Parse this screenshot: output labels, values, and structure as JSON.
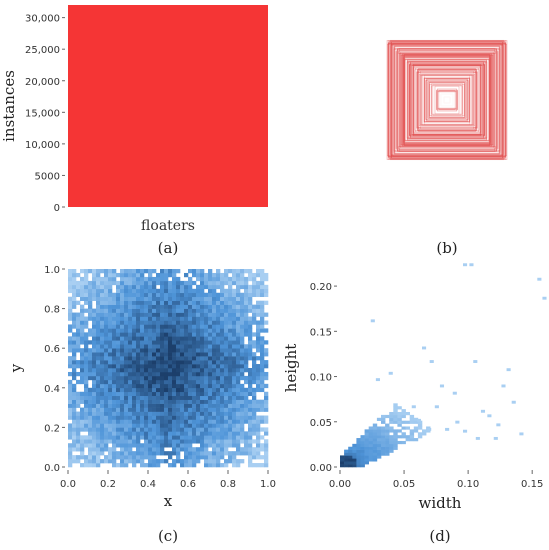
{
  "colors": {
    "bar": "#f53535",
    "box_stroke": "#e04545",
    "heat_light": "#a9cff2",
    "heat_mid": "#4e94d8",
    "heat_dark": "#1c3f6b"
  },
  "panels": {
    "a": "(a)",
    "b": "(b)",
    "c": "(c)",
    "d": "(d)"
  },
  "chart_data": [
    {
      "type": "bar",
      "categories": [
        "floaters"
      ],
      "values": [
        32000
      ],
      "ylabel": "instances",
      "ylim": [
        0,
        32000
      ],
      "yticks": [
        "0",
        "5000",
        "10,000",
        "15,000",
        "20,000",
        "25,000",
        "30,000"
      ],
      "ytick_values": [
        0,
        5000,
        10000,
        15000,
        20000,
        25000,
        30000
      ]
    },
    {
      "type": "other",
      "description_kind": "overlaid bounding boxes",
      "grid": false
    },
    {
      "type": "heatmap",
      "xlabel": "x",
      "ylabel": "y",
      "xlim": [
        0,
        1
      ],
      "ylim": [
        0,
        1
      ],
      "xticks": [
        "0.0",
        "0.2",
        "0.4",
        "0.6",
        "0.8",
        "1.0"
      ],
      "yticks": [
        "0.0",
        "0.2",
        "0.4",
        "0.6",
        "0.8",
        "1.0"
      ],
      "tick_values": [
        0,
        0.2,
        0.4,
        0.6,
        0.8,
        1.0
      ],
      "bins": 50,
      "center": [
        0.5,
        0.5
      ],
      "density_shape": "diamond"
    },
    {
      "type": "heatmap",
      "xlabel": "width",
      "ylabel": "height",
      "xlim": [
        0,
        0.16
      ],
      "ylim": [
        0,
        0.22
      ],
      "xticks": [
        "0.00",
        "0.05",
        "0.10",
        "0.15"
      ],
      "xtick_values": [
        0,
        0.05,
        0.1,
        0.15
      ],
      "yticks": [
        "0.00",
        "0.05",
        "0.10",
        "0.15",
        "0.20"
      ],
      "ytick_values": [
        0,
        0.05,
        0.1,
        0.15,
        0.2
      ],
      "cell_size": 0.0032,
      "outlier_cells": [
        [
          0.024,
          0.16
        ],
        [
          0.038,
          0.102
        ],
        [
          0.064,
          0.13
        ],
        [
          0.07,
          0.115
        ],
        [
          0.078,
          0.088
        ],
        [
          0.088,
          0.08
        ],
        [
          0.096,
          0.222
        ],
        [
          0.101,
          0.222
        ],
        [
          0.104,
          0.115
        ],
        [
          0.11,
          0.06
        ],
        [
          0.115,
          0.055
        ],
        [
          0.122,
          0.045
        ],
        [
          0.126,
          0.088
        ],
        [
          0.13,
          0.106
        ],
        [
          0.154,
          0.206
        ],
        [
          0.158,
          0.185
        ],
        [
          0.14,
          0.035
        ],
        [
          0.134,
          0.07
        ],
        [
          0.09,
          0.048
        ],
        [
          0.082,
          0.04
        ],
        [
          0.096,
          0.038
        ],
        [
          0.074,
          0.065
        ],
        [
          0.068,
          0.04
        ],
        [
          0.106,
          0.03
        ],
        [
          0.12,
          0.03
        ],
        [
          0.028,
          0.095
        ],
        [
          0.056,
          0.065
        ],
        [
          0.06,
          0.05
        ]
      ]
    }
  ]
}
